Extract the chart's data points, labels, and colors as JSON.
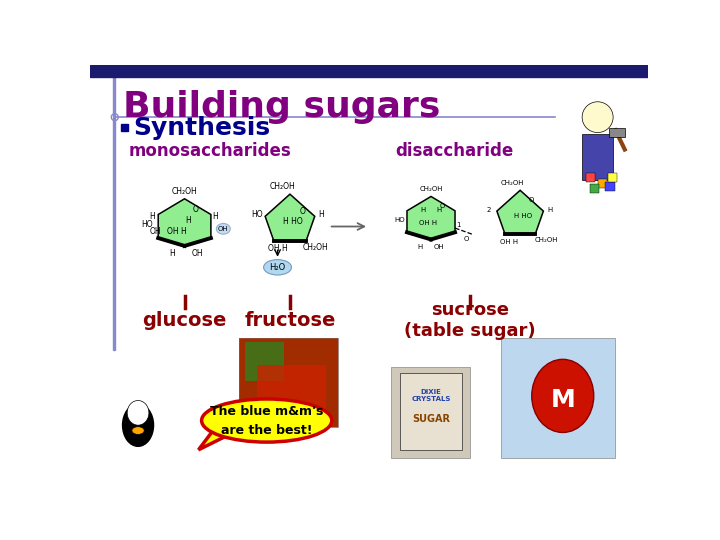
{
  "title": "Building sugars",
  "bullet": "Synthesis",
  "label_mono": "monosaccharides",
  "label_disac": "disaccharide",
  "label_glucose": "glucose",
  "label_fructose": "fructose",
  "label_sucrose": "sucrose\n(table sugar)",
  "speech_text": "The blue m&m's\nare the best!",
  "title_color": "#800080",
  "bullet_color": "#00008B",
  "sugar_label_color": "#8B0000",
  "mono_label_color": "#800080",
  "disac_label_color": "#800080",
  "bg_color": "#FFFFFF",
  "header_bar_color": "#1a1a6e",
  "ring_fill": "#90EE90",
  "ring_edge": "#000000",
  "speech_fill": "#FFFF00",
  "speech_edge": "#CC0000",
  "vline_color": "#8888CC",
  "hline_color": "#8888CC",
  "h2o_fill": "#B0D8F0",
  "h2o_edge": "#7799BB"
}
